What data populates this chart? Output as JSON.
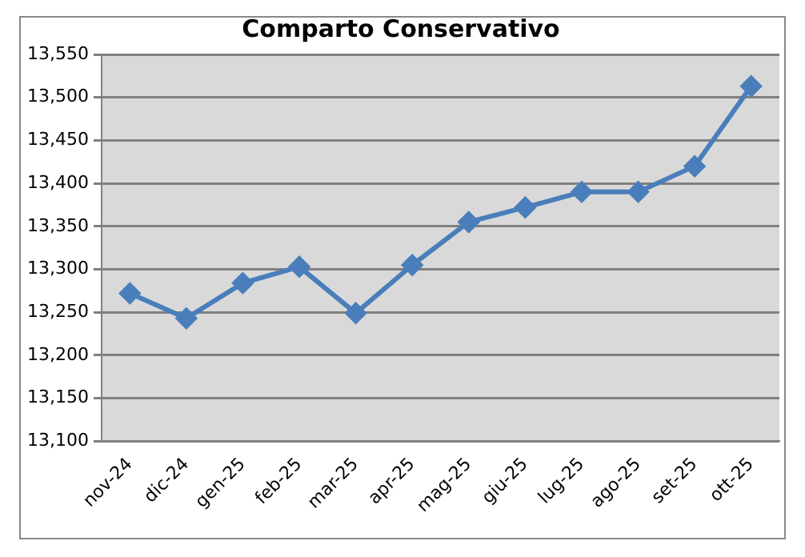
{
  "chart_data": {
    "type": "line",
    "title": "Comparto Conservativo",
    "categories": [
      "nov-24",
      "dic-24",
      "gen-25",
      "feb-25",
      "mar-25",
      "apr-25",
      "mag-25",
      "giu-25",
      "lug-25",
      "ago-25",
      "set-25",
      "ott-25"
    ],
    "series": [
      {
        "color": "#4a7ebb",
        "values": [
          13272,
          13243,
          13284,
          13303,
          13249,
          13305,
          13355,
          13372,
          13390,
          13390,
          13420,
          13513
        ]
      }
    ],
    "ylim": [
      13100,
      13550
    ],
    "yticks": [
      {
        "value": 13100,
        "label": "13,100"
      },
      {
        "value": 13150,
        "label": "13,150"
      },
      {
        "value": 13200,
        "label": "13,200"
      },
      {
        "value": 13250,
        "label": "13,250"
      },
      {
        "value": 13300,
        "label": "13,300"
      },
      {
        "value": 13350,
        "label": "13,350"
      },
      {
        "value": 13400,
        "label": "13,400"
      },
      {
        "value": 13450,
        "label": "13,450"
      },
      {
        "value": 13500,
        "label": "13,500"
      },
      {
        "value": 13550,
        "label": "13,550"
      }
    ],
    "grid": "y",
    "marker": "diamond",
    "line_style": "solid"
  }
}
